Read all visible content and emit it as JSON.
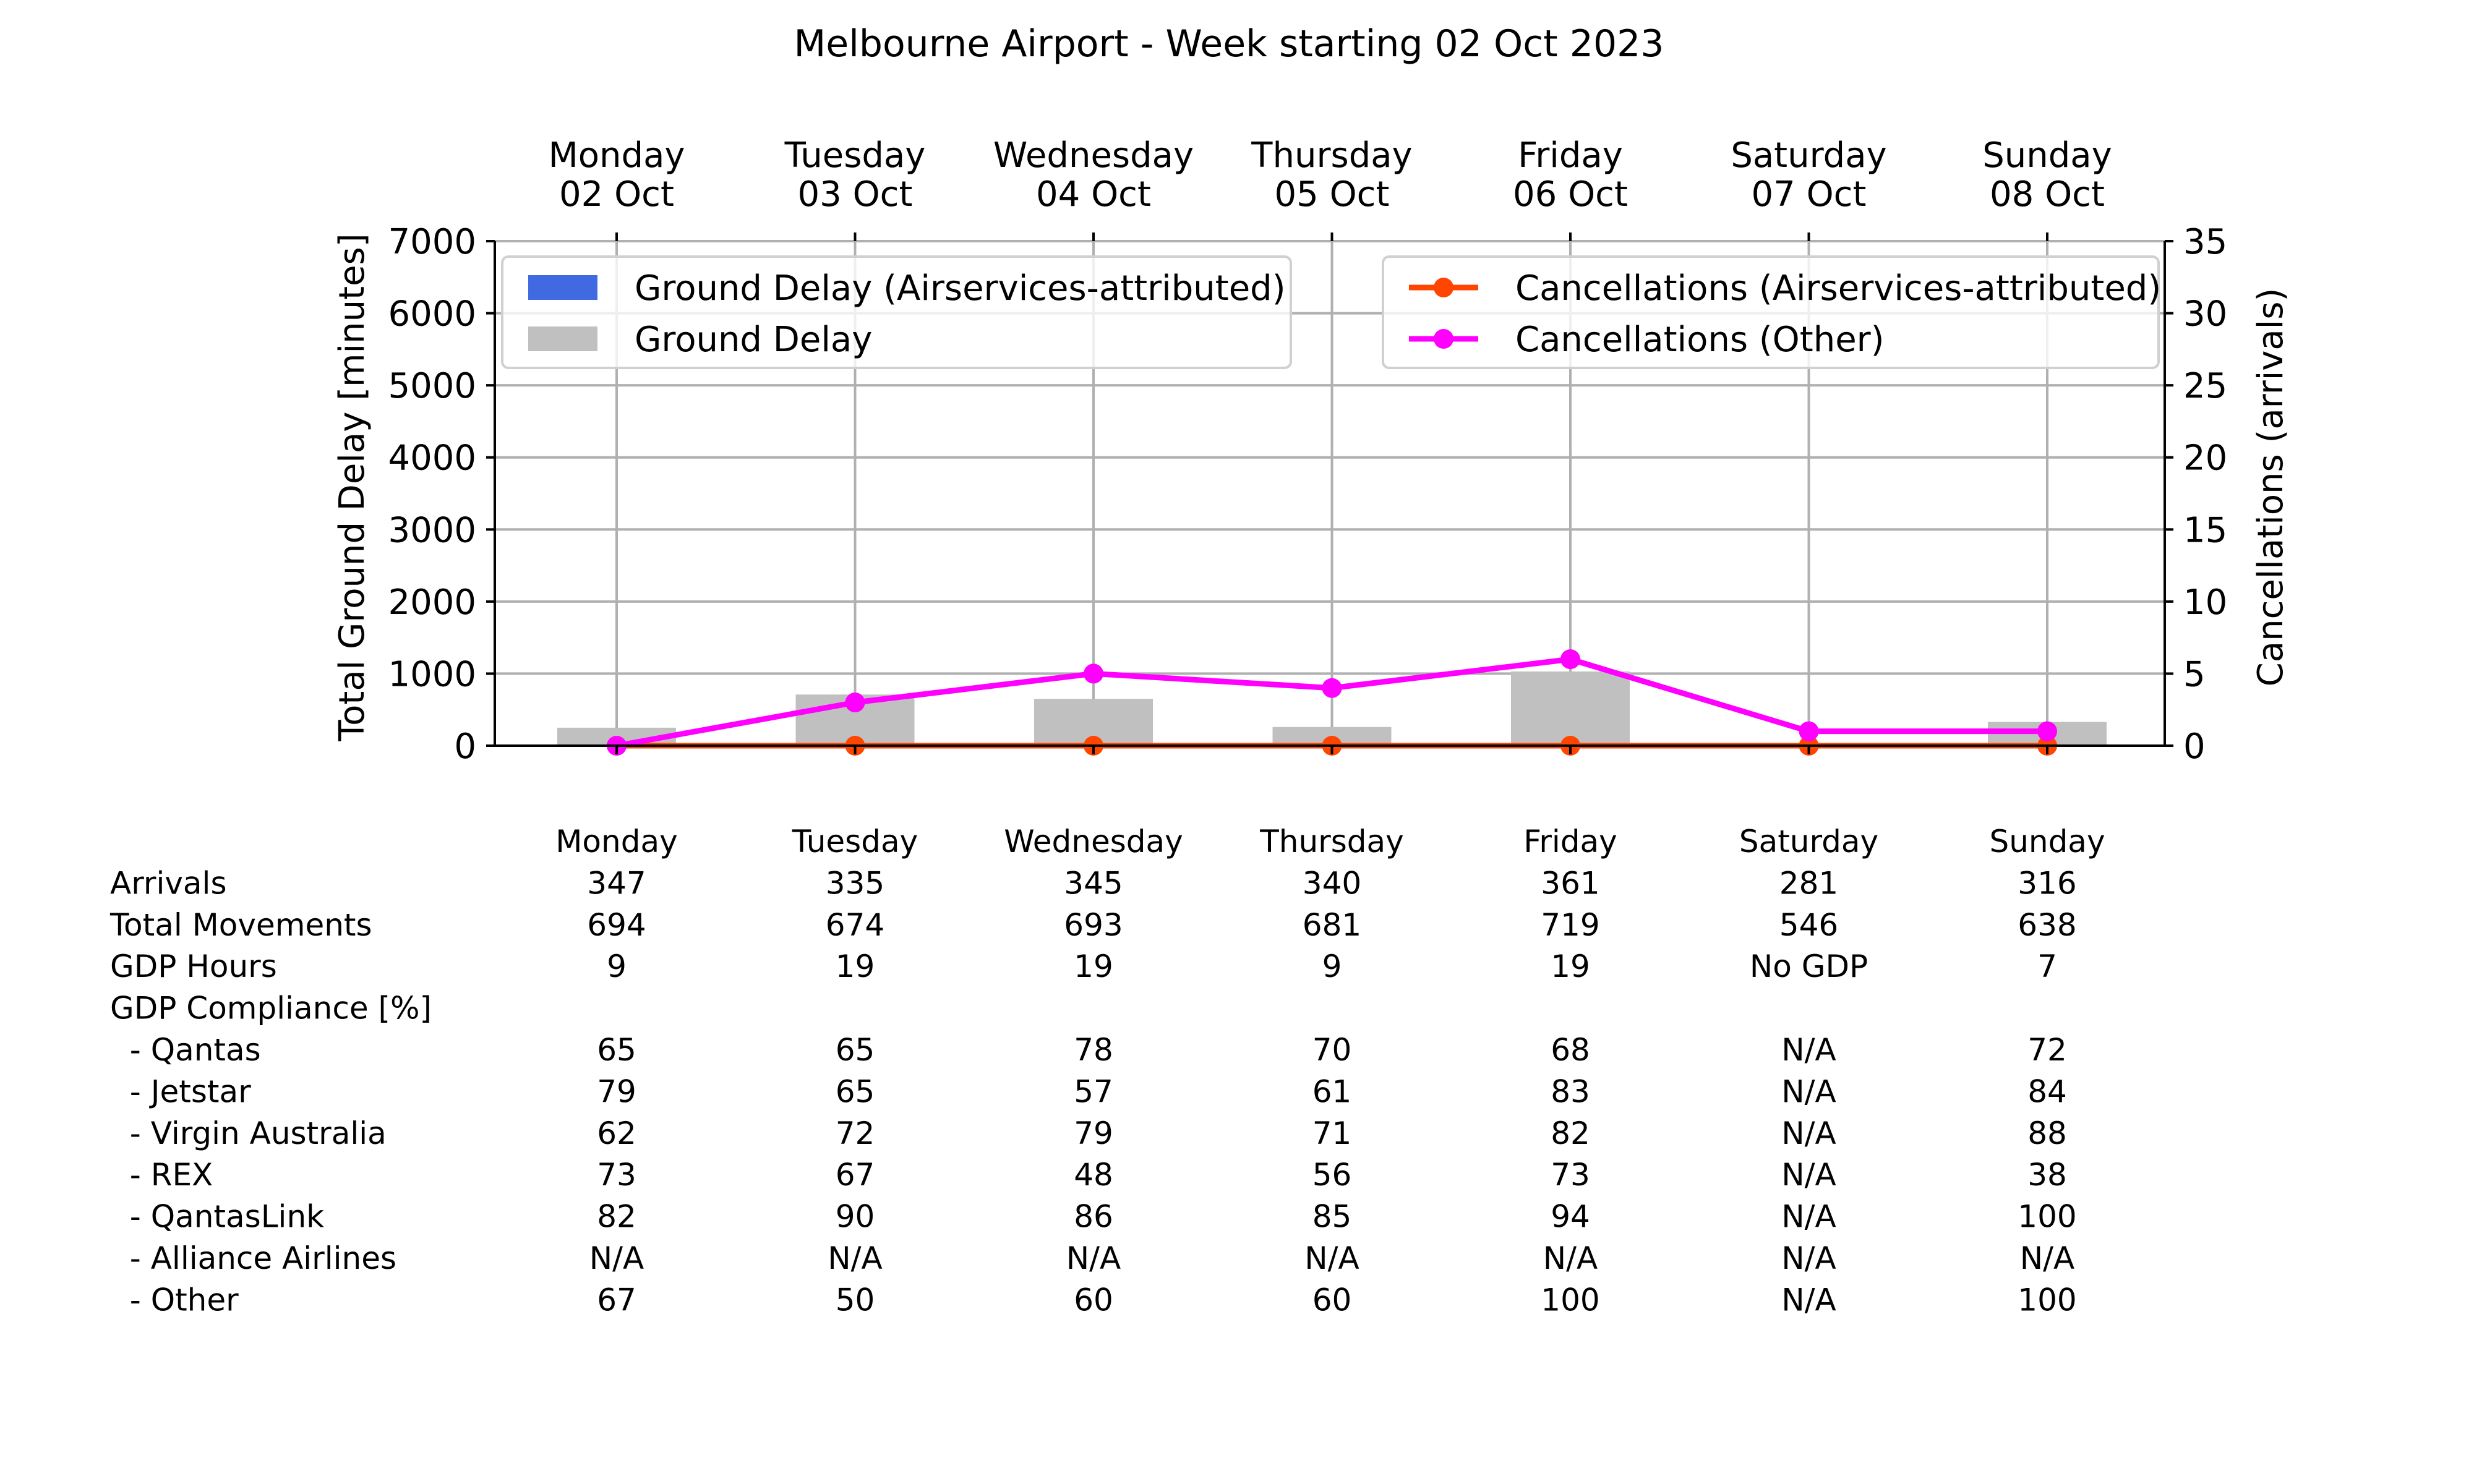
{
  "chart_data": {
    "type": "bar",
    "title": "Melbourne Airport - Week starting 02 Oct 2023",
    "day_names": [
      "Monday",
      "Tuesday",
      "Wednesday",
      "Thursday",
      "Friday",
      "Saturday",
      "Sunday"
    ],
    "day_dates": [
      "02 Oct",
      "03 Oct",
      "04 Oct",
      "05 Oct",
      "06 Oct",
      "07 Oct",
      "08 Oct"
    ],
    "ylabel_left": "Total Ground Delay [minutes]",
    "ylabel_right": "Cancellations (arrivals)",
    "ylim_left": [
      0,
      7000
    ],
    "ylim_right": [
      0,
      35
    ],
    "yticks_left": [
      "0",
      "1000",
      "2000",
      "3000",
      "4000",
      "5000",
      "6000",
      "7000"
    ],
    "yticks_right": [
      "0",
      "5",
      "10",
      "15",
      "20",
      "25",
      "30",
      "35"
    ],
    "grid": true,
    "legend_left_placement": "top-left",
    "legend_right_placement": "top-right",
    "series": [
      {
        "name": "Ground Delay (Airservices-attributed)",
        "kind": "bar",
        "axis": "left",
        "color": "#4169e1",
        "values": [
          0,
          0,
          0,
          0,
          0,
          0,
          0
        ]
      },
      {
        "name": "Ground Delay",
        "kind": "bar",
        "axis": "left",
        "color": "#c0c0c0",
        "values": [
          250,
          710,
          650,
          260,
          1030,
          0,
          330
        ]
      },
      {
        "name": "Cancellations (Airservices-attributed)",
        "kind": "line",
        "axis": "right",
        "color": "#ff4500",
        "values": [
          0,
          0,
          0,
          0,
          0,
          0,
          0
        ]
      },
      {
        "name": "Cancellations (Other)",
        "kind": "line",
        "axis": "right",
        "color": "#ff00ff",
        "values": [
          0,
          3,
          5,
          4,
          6,
          1,
          1
        ]
      }
    ]
  },
  "table": {
    "header": [
      "Monday",
      "Tuesday",
      "Wednesday",
      "Thursday",
      "Friday",
      "Saturday",
      "Sunday"
    ],
    "rows": [
      {
        "label": "Arrivals",
        "values": [
          "347",
          "335",
          "345",
          "340",
          "361",
          "281",
          "316"
        ]
      },
      {
        "label": "Total Movements",
        "values": [
          "694",
          "674",
          "693",
          "681",
          "719",
          "546",
          "638"
        ]
      },
      {
        "label": "GDP Hours",
        "values": [
          "9",
          "19",
          "19",
          "9",
          "19",
          "No GDP",
          "7"
        ]
      },
      {
        "label": "GDP Compliance [%]",
        "values": [
          "",
          "",
          "",
          "",
          "",
          "",
          ""
        ]
      },
      {
        "label": "  - Qantas",
        "values": [
          "65",
          "65",
          "78",
          "70",
          "68",
          "N/A",
          "72"
        ]
      },
      {
        "label": "  - Jetstar",
        "values": [
          "79",
          "65",
          "57",
          "61",
          "83",
          "N/A",
          "84"
        ]
      },
      {
        "label": "  - Virgin Australia",
        "values": [
          "62",
          "72",
          "79",
          "71",
          "82",
          "N/A",
          "88"
        ]
      },
      {
        "label": "  - REX",
        "values": [
          "73",
          "67",
          "48",
          "56",
          "73",
          "N/A",
          "38"
        ]
      },
      {
        "label": "  - QantasLink",
        "values": [
          "82",
          "90",
          "86",
          "85",
          "94",
          "N/A",
          "100"
        ]
      },
      {
        "label": "  - Alliance Airlines",
        "values": [
          "N/A",
          "N/A",
          "N/A",
          "N/A",
          "N/A",
          "N/A",
          "N/A"
        ]
      },
      {
        "label": "  - Other",
        "values": [
          "67",
          "50",
          "60",
          "60",
          "100",
          "N/A",
          "100"
        ]
      }
    ]
  }
}
